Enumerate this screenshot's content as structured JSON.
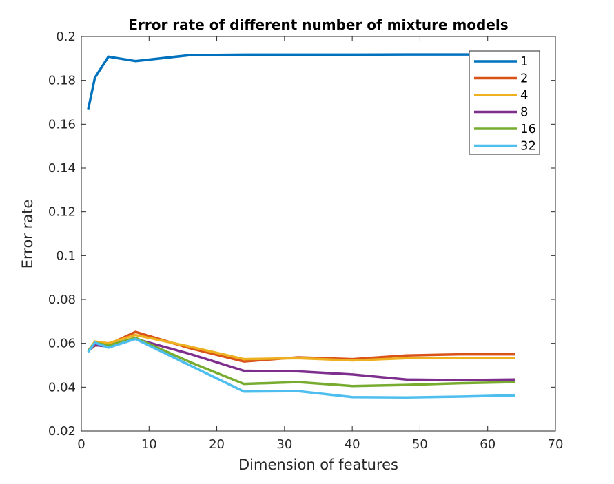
{
  "chart_data": {
    "type": "line",
    "title": "Error rate of different number of mixture models",
    "xlabel": "Dimension of features",
    "ylabel": "Error rate",
    "xlim": [
      0,
      70
    ],
    "ylim": [
      0.02,
      0.2
    ],
    "x_ticks": [
      "0",
      "10",
      "20",
      "30",
      "40",
      "50",
      "60",
      "70"
    ],
    "y_ticks": [
      "0.02",
      "0.04",
      "0.06",
      "0.08",
      "0.1",
      "0.12",
      "0.14",
      "0.16",
      "0.18",
      "0.2"
    ],
    "grid": false,
    "legend_position": "top-right",
    "x": [
      1,
      2,
      4,
      8,
      16,
      24,
      32,
      40,
      48,
      56,
      64
    ],
    "series": [
      {
        "name": "1",
        "color": "#0072BD",
        "values": [
          0.1665,
          0.1812,
          0.1908,
          0.1888,
          0.1915,
          0.1917,
          0.1917,
          0.1917,
          0.1918,
          0.1918,
          0.1918
        ]
      },
      {
        "name": "2",
        "color": "#D95319",
        "values": [
          0.0565,
          0.059,
          0.0595,
          0.0652,
          0.0578,
          0.0517,
          0.0536,
          0.0528,
          0.0545,
          0.055,
          0.055
        ]
      },
      {
        "name": "4",
        "color": "#EDB120",
        "values": [
          0.0565,
          0.0608,
          0.06,
          0.0638,
          0.0585,
          0.0528,
          0.0532,
          0.0522,
          0.0532,
          0.0533,
          0.0534
        ]
      },
      {
        "name": "8",
        "color": "#7E2F8E",
        "values": [
          0.0565,
          0.0592,
          0.0585,
          0.062,
          0.0552,
          0.0475,
          0.0472,
          0.0458,
          0.0435,
          0.0432,
          0.0435
        ]
      },
      {
        "name": "16",
        "color": "#77AC30",
        "values": [
          0.0565,
          0.0603,
          0.059,
          0.0625,
          0.0515,
          0.0415,
          0.0423,
          0.0405,
          0.041,
          0.0418,
          0.0423
        ]
      },
      {
        "name": "32",
        "color": "#4DBEEE",
        "values": [
          0.056,
          0.0603,
          0.058,
          0.062,
          0.05,
          0.038,
          0.0382,
          0.0355,
          0.0353,
          0.0357,
          0.0363
        ]
      }
    ]
  }
}
